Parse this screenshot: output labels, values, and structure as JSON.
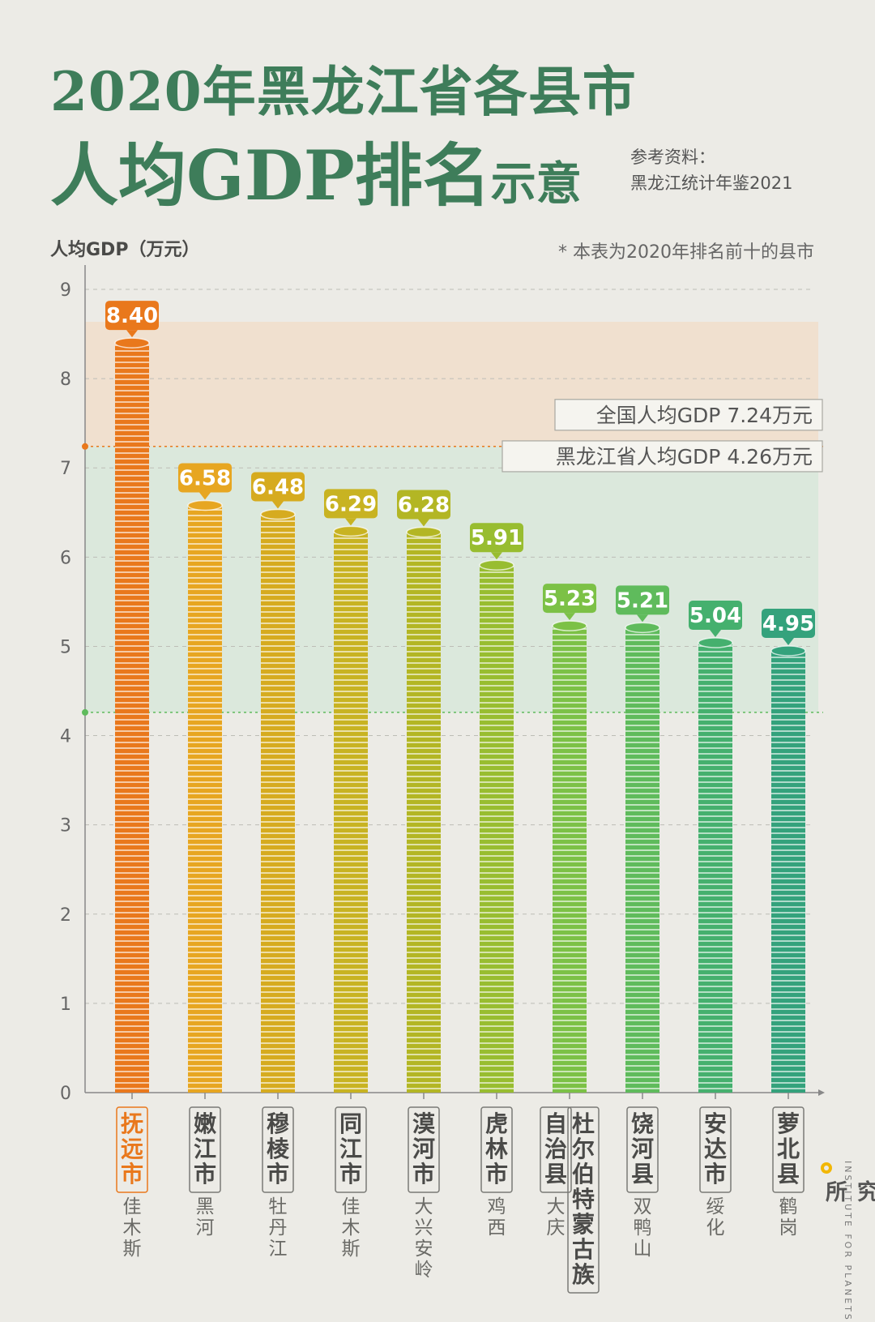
{
  "title": {
    "line1": "2020年黑龙江省各县市",
    "line2_main": "人均GDP排名",
    "line2_suffix": "示意"
  },
  "source": {
    "label": "参考资料：",
    "text": "黑龙江统计年鉴2021"
  },
  "note": "* 本表为2020年排名前十的县市",
  "brand": {
    "name": "星球研究所",
    "english": "INSTITUTE FOR PLANETS"
  },
  "chart_data": {
    "type": "bar",
    "title": "2020年黑龙江省各县市人均GDP排名示意",
    "ylabel": "人均GDP（万元）",
    "ylim": [
      0,
      9
    ],
    "yticks": [
      "0",
      "1",
      "2",
      "3",
      "4",
      "5",
      "6",
      "7",
      "8",
      "9"
    ],
    "grid": true,
    "categories": [
      "抚远市",
      "嫩江市",
      "穆棱市",
      "同江市",
      "漠河市",
      "虎林市",
      "杜尔伯特蒙古族自治县",
      "饶河县",
      "安达市",
      "萝北县"
    ],
    "category_columns": [
      [
        "抚远市"
      ],
      [
        "嫩江市"
      ],
      [
        "穆棱市"
      ],
      [
        "同江市"
      ],
      [
        "漠河市"
      ],
      [
        "虎林市"
      ],
      [
        "杜尔伯特蒙古族",
        "自治县"
      ],
      [
        "饶河县"
      ],
      [
        "安达市"
      ],
      [
        "萝北县"
      ]
    ],
    "prefectures": [
      "佳木斯",
      "黑河",
      "牡丹江",
      "佳木斯",
      "大兴安岭",
      "鸡西",
      "大庆",
      "双鸭山",
      "绥化",
      "鹤岗"
    ],
    "value_labels": [
      "8.40",
      "6.58",
      "6.48",
      "6.29",
      "6.28",
      "5.91",
      "5.23",
      "5.21",
      "5.04",
      "4.95"
    ],
    "values": [
      8.4,
      6.58,
      6.48,
      6.29,
      6.28,
      5.91,
      5.23,
      5.21,
      5.04,
      4.95
    ],
    "colors": [
      "#e9781c",
      "#e7a621",
      "#d6ab1f",
      "#c8b322",
      "#b3b624",
      "#98bd30",
      "#7cc146",
      "#5fbb5c",
      "#45b06e",
      "#34a27c"
    ],
    "highlight_index": 0,
    "reference_lines": [
      {
        "label": "全国人均GDP  7.24万元",
        "value": 7.24,
        "color": "#e9781c",
        "band": "#f6d3b4"
      },
      {
        "label": "黑龙江省人均GDP  4.26万元",
        "value": 4.26,
        "color": "#5fbb5c",
        "band": "#c9e6d2"
      }
    ]
  }
}
